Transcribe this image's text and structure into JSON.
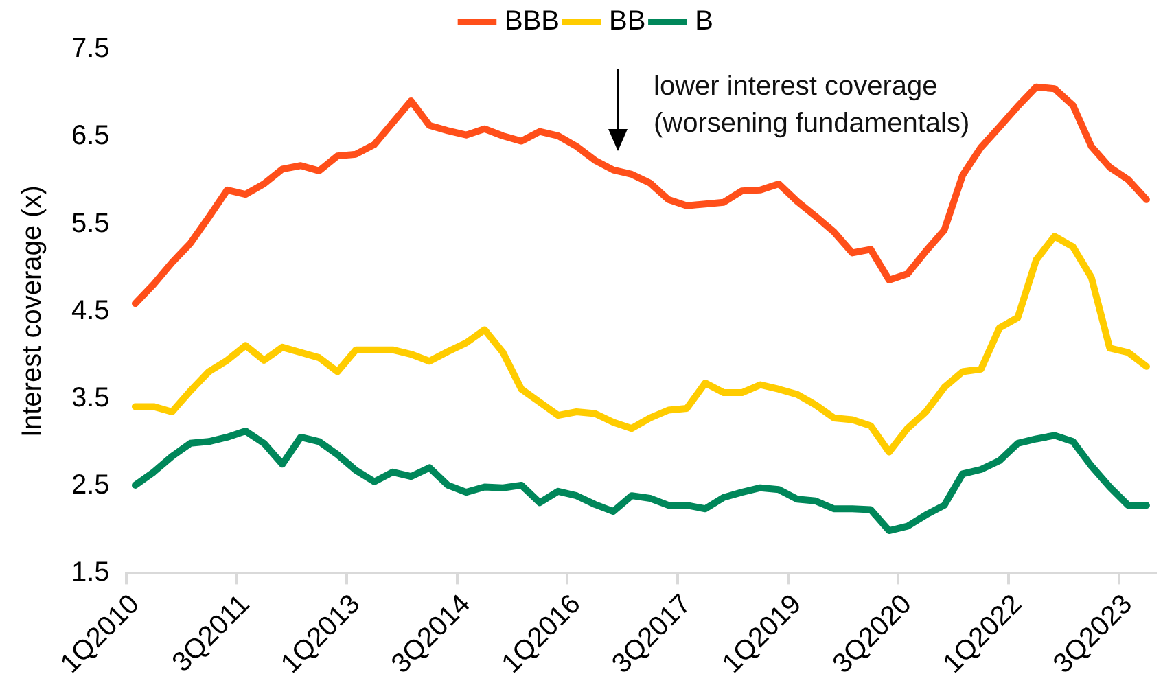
{
  "chart_data": {
    "type": "line",
    "ylabel": "Interest coverage (x)",
    "categories": [
      "1Q2010",
      null,
      null,
      null,
      null,
      null,
      "3Q2011",
      null,
      null,
      null,
      null,
      null,
      "1Q2013",
      null,
      null,
      null,
      null,
      null,
      "3Q2014",
      null,
      null,
      null,
      null,
      null,
      "1Q2016",
      null,
      null,
      null,
      null,
      null,
      "3Q2017",
      null,
      null,
      null,
      null,
      null,
      "1Q2019",
      null,
      null,
      null,
      null,
      null,
      "3Q2020",
      null,
      null,
      null,
      null,
      null,
      "1Q2022",
      null,
      null,
      null,
      null,
      null,
      "3Q2023",
      null
    ],
    "series": [
      {
        "name": "BBB",
        "color": "#ff4f1a",
        "values": [
          4.59,
          4.81,
          5.06,
          5.28,
          5.58,
          5.89,
          5.84,
          5.96,
          6.13,
          6.17,
          6.11,
          6.28,
          6.3,
          6.41,
          6.66,
          6.91,
          6.63,
          6.57,
          6.52,
          6.59,
          6.51,
          6.45,
          6.56,
          6.51,
          6.39,
          6.23,
          6.12,
          6.07,
          5.97,
          5.78,
          5.71,
          5.73,
          5.75,
          5.88,
          5.89,
          5.96,
          5.76,
          5.59,
          5.41,
          5.17,
          5.21,
          4.86,
          4.93,
          5.19,
          5.43,
          6.06,
          6.38,
          6.61,
          6.85,
          7.07,
          7.05,
          6.86,
          6.39,
          6.15,
          6.01,
          5.78
        ]
      },
      {
        "name": "BB",
        "color": "#ffcc00",
        "values": [
          3.41,
          3.41,
          3.35,
          3.59,
          3.81,
          3.94,
          4.11,
          3.94,
          4.09,
          4.03,
          3.97,
          3.81,
          4.06,
          4.06,
          4.06,
          4.01,
          3.93,
          4.04,
          4.14,
          4.29,
          4.03,
          3.61,
          3.46,
          3.31,
          3.35,
          3.33,
          3.23,
          3.16,
          3.28,
          3.37,
          3.39,
          3.68,
          3.57,
          3.57,
          3.66,
          3.61,
          3.55,
          3.43,
          3.28,
          3.26,
          3.19,
          2.89,
          3.16,
          3.35,
          3.63,
          3.81,
          3.84,
          4.31,
          4.43,
          5.09,
          5.36,
          5.24,
          4.89,
          4.08,
          4.03,
          3.87
        ]
      },
      {
        "name": "B",
        "color": "#00875a",
        "values": [
          2.51,
          2.66,
          2.84,
          2.99,
          3.01,
          3.06,
          3.13,
          2.99,
          2.75,
          3.06,
          3.01,
          2.86,
          2.68,
          2.55,
          2.66,
          2.61,
          2.71,
          2.51,
          2.43,
          2.49,
          2.48,
          2.51,
          2.31,
          2.44,
          2.39,
          2.29,
          2.21,
          2.39,
          2.36,
          2.28,
          2.28,
          2.24,
          2.37,
          2.43,
          2.48,
          2.46,
          2.35,
          2.33,
          2.24,
          2.24,
          2.23,
          1.99,
          2.04,
          2.17,
          2.28,
          2.64,
          2.69,
          2.79,
          2.99,
          3.04,
          3.08,
          3.01,
          2.73,
          2.49,
          2.28,
          2.28
        ]
      }
    ],
    "ylim": [
      1.5,
      7.5
    ],
    "yticks": [
      1.5,
      2.5,
      3.5,
      4.5,
      5.5,
      6.5,
      7.5
    ],
    "grid": false,
    "legend": "top",
    "marker": "none",
    "line_style": "solid",
    "annotations": [
      "lower interest coverage (worsening fundamentals)"
    ]
  }
}
